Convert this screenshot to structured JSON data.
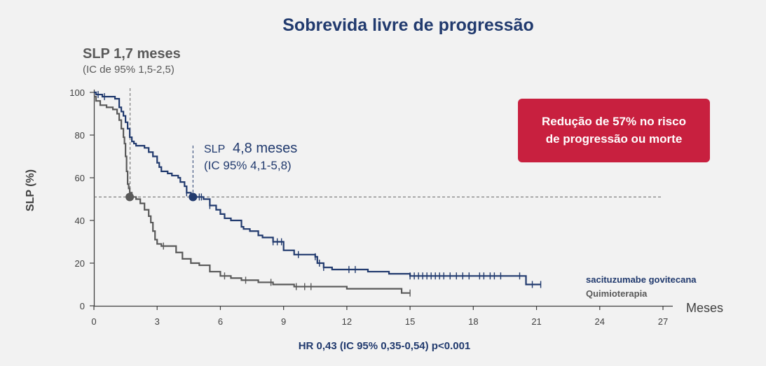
{
  "chart_data": {
    "type": "line",
    "title": "Sobrevida livre de progressão",
    "xlabel": "Meses",
    "ylabel": "SLP (%)",
    "xlim": [
      0,
      27
    ],
    "ylim": [
      0,
      100
    ],
    "xticks": [
      0,
      3,
      6,
      9,
      12,
      15,
      18,
      21,
      24,
      27
    ],
    "yticks": [
      0,
      20,
      40,
      60,
      80,
      100
    ],
    "median_line_y": 51,
    "series": [
      {
        "name": "sacituzumabe govitecana",
        "color": "#213a6e",
        "x": [
          0,
          0.1,
          0.4,
          1.0,
          1.2,
          1.3,
          1.4,
          1.5,
          1.6,
          1.7,
          1.8,
          1.9,
          2.0,
          2.2,
          2.4,
          2.6,
          2.8,
          3.0,
          3.1,
          3.2,
          3.5,
          3.7,
          4.0,
          4.1,
          4.3,
          4.4,
          4.6,
          4.8,
          5.2,
          5.5,
          5.8,
          6.0,
          6.2,
          6.5,
          7.0,
          7.1,
          7.4,
          7.8,
          8.0,
          8.5,
          9.0,
          9.5,
          10.0,
          10.5,
          10.6,
          10.9,
          11.3,
          12.0,
          13.0,
          14.0,
          14.5,
          15.0,
          16.0,
          17.5,
          19.0,
          20.0,
          20.5,
          21.2
        ],
        "y": [
          100,
          99,
          98,
          97,
          93,
          91,
          89,
          86,
          83,
          79,
          77,
          76,
          75,
          75,
          74,
          72,
          70,
          67,
          65,
          63,
          62,
          61,
          60,
          58,
          56,
          53,
          52,
          51,
          50,
          47,
          45,
          43,
          41,
          40,
          37,
          36,
          35,
          33,
          32,
          30,
          26,
          24,
          24,
          23,
          20,
          18,
          17,
          17,
          16,
          15,
          15,
          14,
          14,
          14,
          14,
          14,
          10,
          10
        ],
        "censor_x": [
          0.2,
          0.5,
          4.4,
          4.8,
          5.0,
          5.1,
          5.5,
          8.5,
          8.7,
          8.9,
          9.7,
          10.5,
          10.7,
          10.9,
          12.1,
          12.4,
          15.0,
          15.2,
          15.4,
          15.6,
          15.8,
          16.0,
          16.2,
          16.4,
          16.6,
          16.9,
          17.2,
          17.5,
          17.8,
          18.3,
          18.5,
          18.8,
          19.0,
          19.3,
          20.2,
          20.8,
          21.2
        ]
      },
      {
        "name": "Quimioterapia",
        "color": "#595959",
        "x": [
          0,
          0.1,
          0.3,
          0.6,
          0.9,
          1.1,
          1.2,
          1.3,
          1.4,
          1.45,
          1.5,
          1.55,
          1.6,
          1.65,
          1.7,
          1.8,
          2.0,
          2.2,
          2.4,
          2.6,
          2.7,
          2.8,
          2.9,
          3.0,
          3.2,
          3.5,
          3.9,
          4.2,
          4.6,
          5.0,
          5.5,
          6.0,
          6.5,
          7.0,
          7.5,
          7.8,
          8.0,
          8.5,
          9.0,
          9.5,
          10.0,
          11.0,
          12.0,
          13.0,
          14.0,
          14.6,
          15.0
        ],
        "y": [
          98,
          96,
          94,
          93,
          92,
          90,
          87,
          83,
          79,
          76,
          70,
          63,
          57,
          55,
          53,
          51,
          50,
          48,
          45,
          42,
          39,
          35,
          31,
          29,
          28,
          28,
          25,
          22,
          20,
          19,
          16,
          14,
          13,
          12,
          12,
          11,
          11,
          10,
          10,
          9,
          9,
          9,
          8,
          8,
          8,
          6,
          6
        ],
        "censor_x": [
          3.3,
          6.2,
          7.2,
          8.4,
          9.6,
          10.0,
          10.3,
          15.0
        ]
      }
    ],
    "medians": [
      {
        "series": "Quimioterapia",
        "x": 1.7,
        "y": 51
      },
      {
        "series": "sacituzumabe govitecana",
        "x": 4.8,
        "y": 51
      }
    ]
  },
  "text": {
    "pfs_chemo_label": "SLP 1,7 meses",
    "pfs_chemo_ci": "(IC de 95% 1,5-2,5)",
    "pfs_sg_label_small": "SLP",
    "pfs_sg_label_value": "4,8 meses",
    "pfs_sg_ci": "(IC 95% 4,1-5,8)",
    "callout_line1": "Redução de 57% no risco",
    "callout_line2": "de progressão ou morte",
    "legend_sg": "sacituzumabe govitecana",
    "legend_chemo": "Quimioterapia",
    "hr": "HR 0,43 (IC 95% 0,35-0,54) p<0.001"
  },
  "colors": {
    "sg": "#213a6e",
    "chemo": "#595959",
    "callout": "#c8203f"
  }
}
